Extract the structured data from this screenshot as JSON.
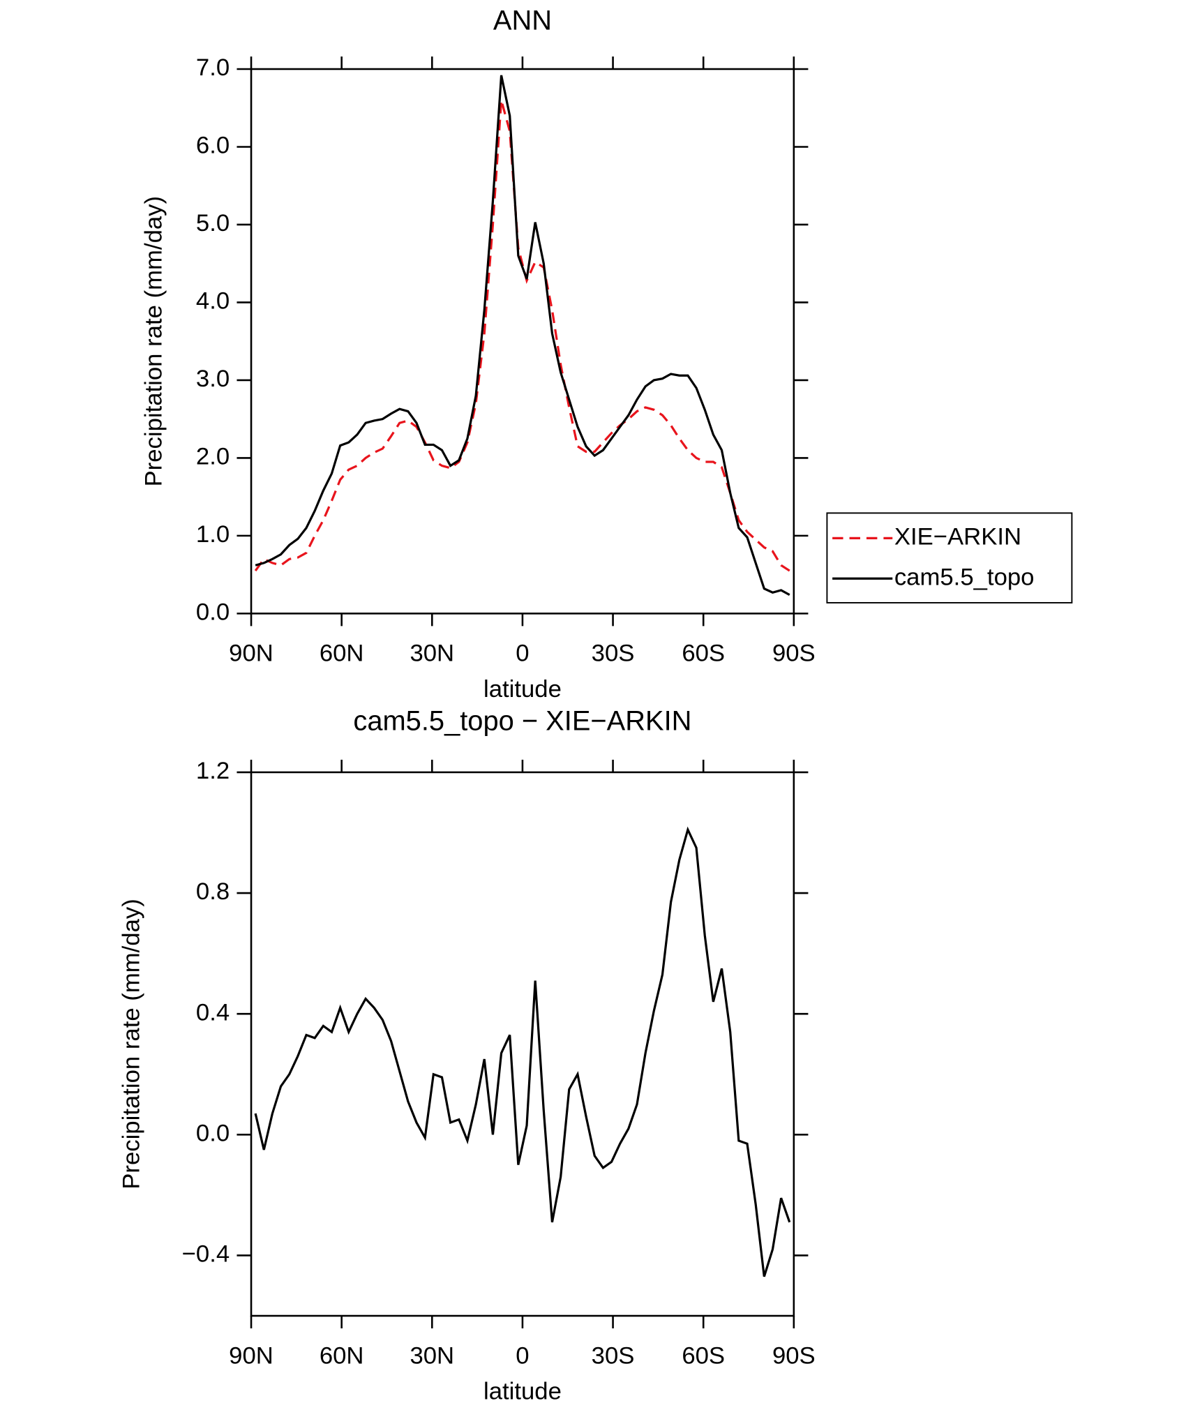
{
  "chart_data": [
    {
      "type": "line",
      "title": "ANN",
      "xlabel": "latitude",
      "ylabel": "Precipitation rate (mm/day)",
      "x": [
        88.59,
        85.78,
        82.97,
        80.16,
        77.34,
        74.53,
        71.72,
        68.91,
        66.09,
        63.28,
        60.47,
        57.66,
        54.84,
        52.03,
        49.22,
        46.41,
        43.59,
        40.78,
        37.97,
        35.16,
        32.34,
        29.53,
        26.72,
        23.91,
        21.09,
        18.28,
        15.47,
        12.66,
        9.84,
        7.03,
        4.22,
        1.41,
        -1.41,
        -4.22,
        -7.03,
        -9.84,
        -12.66,
        -15.47,
        -18.28,
        -21.09,
        -23.91,
        -26.72,
        -29.53,
        -32.34,
        -35.16,
        -37.97,
        -40.78,
        -43.59,
        -46.41,
        -49.22,
        -52.03,
        -54.84,
        -57.66,
        -60.47,
        -63.28,
        -66.09,
        -68.91,
        -71.72,
        -74.53,
        -77.34,
        -80.16,
        -82.97,
        -85.78,
        -88.59
      ],
      "series": [
        {
          "name": "XIE−ARKIN",
          "color": "#e8141c",
          "linestyle": "dashed",
          "values": [
            0.55,
            0.7,
            0.65,
            0.62,
            0.7,
            0.72,
            0.78,
            1.0,
            1.2,
            1.45,
            1.72,
            1.85,
            1.9,
            2.0,
            2.07,
            2.12,
            2.28,
            2.45,
            2.48,
            2.4,
            2.2,
            1.97,
            1.9,
            1.87,
            1.95,
            2.2,
            2.7,
            3.6,
            5.0,
            6.6,
            6.2,
            4.7,
            4.28,
            4.52,
            4.45,
            3.9,
            3.2,
            2.65,
            2.15,
            2.08,
            2.08,
            2.2,
            2.32,
            2.42,
            2.5,
            2.6,
            2.65,
            2.62,
            2.55,
            2.42,
            2.25,
            2.1,
            2.0,
            1.95,
            1.95,
            1.88,
            1.55,
            1.2,
            1.05,
            0.95,
            0.85,
            0.8,
            0.62,
            0.55
          ]
        },
        {
          "name": "cam5.5_topo",
          "color": "#000000",
          "linestyle": "solid",
          "values": [
            0.62,
            0.65,
            0.7,
            0.76,
            0.88,
            0.96,
            1.1,
            1.32,
            1.58,
            1.8,
            2.16,
            2.2,
            2.3,
            2.45,
            2.48,
            2.5,
            2.57,
            2.63,
            2.6,
            2.45,
            2.17,
            2.17,
            2.1,
            1.9,
            1.97,
            2.25,
            2.8,
            3.9,
            5.3,
            6.92,
            6.4,
            4.6,
            4.3,
            5.03,
            4.5,
            3.6,
            3.1,
            2.75,
            2.4,
            2.15,
            2.03,
            2.1,
            2.25,
            2.4,
            2.55,
            2.75,
            2.92,
            3.0,
            3.02,
            3.08,
            3.06,
            3.06,
            2.9,
            2.62,
            2.3,
            2.1,
            1.55,
            1.1,
            0.98,
            0.65,
            0.32,
            0.27,
            0.3,
            0.24
          ]
        }
      ],
      "xlim": [
        90,
        -90
      ],
      "xticks": [
        {
          "value": 90,
          "label": "90N"
        },
        {
          "value": 60,
          "label": "60N"
        },
        {
          "value": 30,
          "label": "30N"
        },
        0,
        {
          "value": -30,
          "label": "30S"
        },
        {
          "value": -60,
          "label": "60S"
        },
        {
          "value": -90,
          "label": "90S"
        }
      ],
      "ylim": [
        0,
        7
      ],
      "yticks": [
        {
          "value": 0,
          "label": "0.0"
        },
        {
          "value": 1,
          "label": "1.0"
        },
        {
          "value": 2,
          "label": "2.0"
        },
        {
          "value": 3,
          "label": "3.0"
        },
        {
          "value": 4,
          "label": "4.0"
        },
        {
          "value": 5,
          "label": "5.0"
        },
        {
          "value": 6,
          "label": "6.0"
        },
        {
          "value": 7,
          "label": "7.0"
        }
      ],
      "legend": "right"
    },
    {
      "type": "line",
      "title": "cam5.5_topo − XIE−ARKIN",
      "xlabel": "latitude",
      "ylabel": "Precipitation rate (mm/day)",
      "x": [
        88.59,
        85.78,
        82.97,
        80.16,
        77.34,
        74.53,
        71.72,
        68.91,
        66.09,
        63.28,
        60.47,
        57.66,
        54.84,
        52.03,
        49.22,
        46.41,
        43.59,
        40.78,
        37.97,
        35.16,
        32.34,
        29.53,
        26.72,
        23.91,
        21.09,
        18.28,
        15.47,
        12.66,
        9.84,
        7.03,
        4.22,
        1.41,
        -1.41,
        -4.22,
        -7.03,
        -9.84,
        -12.66,
        -15.47,
        -18.28,
        -21.09,
        -23.91,
        -26.72,
        -29.53,
        -32.34,
        -35.16,
        -37.97,
        -40.78,
        -43.59,
        -46.41,
        -49.22,
        -52.03,
        -54.84,
        -57.66,
        -60.47,
        -63.28,
        -66.09,
        -68.91,
        -71.72,
        -74.53,
        -77.34,
        -80.16,
        -82.97,
        -85.78,
        -88.59
      ],
      "color": "#000000",
      "values": [
        0.07,
        -0.05,
        0.07,
        0.16,
        0.2,
        0.26,
        0.33,
        0.32,
        0.36,
        0.34,
        0.42,
        0.34,
        0.4,
        0.45,
        0.42,
        0.38,
        0.31,
        0.21,
        0.11,
        0.04,
        -0.01,
        0.2,
        0.19,
        0.04,
        0.05,
        -0.02,
        0.1,
        0.25,
        0.0,
        0.27,
        0.33,
        -0.1,
        0.03,
        0.51,
        0.08,
        -0.29,
        -0.14,
        0.15,
        0.2,
        0.06,
        -0.07,
        -0.11,
        -0.09,
        -0.03,
        0.02,
        0.1,
        0.27,
        0.41,
        0.53,
        0.77,
        0.91,
        1.01,
        0.95,
        0.66,
        0.44,
        0.55,
        0.34,
        -0.02,
        -0.03,
        -0.23,
        -0.47,
        -0.38,
        -0.21,
        -0.29
      ],
      "xlim": [
        90,
        -90
      ],
      "xticks": [
        {
          "value": 90,
          "label": "90N"
        },
        {
          "value": 60,
          "label": "60N"
        },
        {
          "value": 30,
          "label": "30N"
        },
        0,
        {
          "value": -30,
          "label": "30S"
        },
        {
          "value": -60,
          "label": "60S"
        },
        {
          "value": -90,
          "label": "90S"
        }
      ],
      "ylim": [
        -0.6,
        1.2
      ],
      "yticks": [
        {
          "value": -0.4,
          "label": "−0.4"
        },
        {
          "value": 0,
          "label": "0.0"
        },
        0.4,
        0.8,
        1.2
      ]
    }
  ]
}
